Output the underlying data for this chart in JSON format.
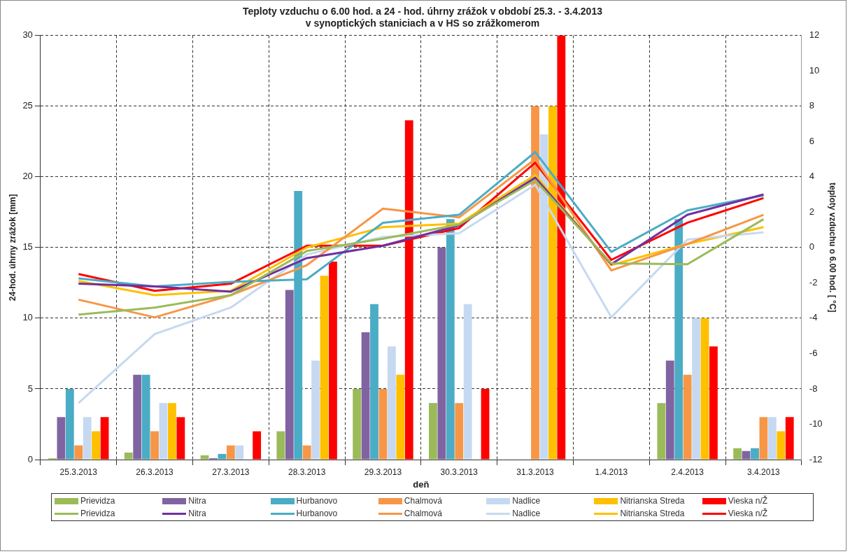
{
  "chart_data": {
    "type": "bar",
    "title": "Teploty vzduchu o 6.00 hod. a 24 - hod. úhrny zrážok v období 25.3. - 3.4.2013\nv synoptických staniciach a v HS so zrážkomerom",
    "xlabel": "deň",
    "ylabel": "24-hod. úhrny zrážok [mm]",
    "y2label": "teploty vzduchu o 6.00 hod. [ °C]",
    "categories": [
      "25.3.2013",
      "26.3.2013",
      "27.3.2013",
      "28.3.2013",
      "29.3.2013",
      "30.3.2013",
      "31.3.2013",
      "1.4.2013",
      "2.4.2013",
      "3.4.2013"
    ],
    "ylim": [
      0,
      30
    ],
    "yticks": [
      0,
      5,
      10,
      15,
      20,
      25,
      30
    ],
    "y2lim": [
      -12,
      12
    ],
    "y2ticks": [
      -12,
      -10,
      -8,
      -6,
      -4,
      -2,
      0,
      2,
      4,
      6,
      8,
      10,
      12
    ],
    "grid": true,
    "legend": "bottom",
    "series": [
      {
        "name": "Prievidza",
        "color": "#9bbb59",
        "values": [
          0.1,
          0.5,
          0.3,
          2,
          5,
          4,
          0,
          0,
          4,
          0.8
        ]
      },
      {
        "name": "Nitra",
        "color": "#8064a2",
        "values": [
          3,
          6,
          0.1,
          12,
          9,
          15,
          0,
          0,
          7,
          0.6
        ]
      },
      {
        "name": "Hurbanovo",
        "color": "#4bacc6",
        "values": [
          5,
          6,
          0.4,
          19,
          11,
          17,
          0,
          0,
          17,
          0.8
        ]
      },
      {
        "name": "Chalmová",
        "color": "#f79646",
        "values": [
          1,
          2,
          1,
          1,
          5,
          4,
          25,
          0,
          6,
          3
        ]
      },
      {
        "name": "Nadlice",
        "color": "#c6d9f1",
        "values": [
          3,
          4,
          1,
          7,
          8,
          11,
          23,
          0,
          10,
          3
        ]
      },
      {
        "name": "Nitrianska Streda",
        "color": "#ffc000",
        "values": [
          2,
          4,
          0,
          13,
          6,
          0,
          25,
          0,
          10,
          2
        ]
      },
      {
        "name": "Vieska n/Ž",
        "color": "#ff0000",
        "values": [
          3,
          3,
          2,
          14,
          24,
          5,
          30,
          0,
          8,
          3
        ]
      },
      {
        "name": "Prievidza",
        "type": "line",
        "axis": "y2",
        "color": "#9bbb59",
        "values": [
          -3.8,
          -3.4,
          -2.7,
          -0.2,
          0.5,
          1.3,
          3.8,
          -0.9,
          -0.95,
          1.6
        ]
      },
      {
        "name": "Nitra",
        "type": "line",
        "axis": "y2",
        "color": "#7030a0",
        "values": [
          -2.05,
          -2.2,
          -2.5,
          -0.6,
          0.1,
          1.25,
          3.95,
          -0.95,
          1.85,
          3.0
        ]
      },
      {
        "name": "Hurbanovo",
        "type": "line",
        "axis": "y2",
        "color": "#4bacc6",
        "values": [
          -1.75,
          -2.2,
          -1.95,
          -1.8,
          1.4,
          1.85,
          5.4,
          -0.25,
          2.1,
          2.95
        ]
      },
      {
        "name": "Chalmová",
        "type": "line",
        "axis": "y2",
        "color": "#f79646",
        "values": [
          -2.95,
          -3.95,
          -2.7,
          -1.0,
          2.2,
          1.7,
          5.0,
          -1.3,
          0.2,
          1.85
        ]
      },
      {
        "name": "Nadlice",
        "type": "line",
        "axis": "y2",
        "color": "#c6d9f1",
        "values": [
          -8.8,
          -4.9,
          -3.4,
          -0.4,
          0.6,
          0.8,
          3.55,
          -3.95,
          0.45,
          0.85
        ]
      },
      {
        "name": "Nitrianska Streda",
        "type": "line",
        "axis": "y2",
        "color": "#ffc000",
        "values": [
          -1.9,
          -2.7,
          -2.45,
          0.0,
          1.15,
          1.35,
          4.1,
          -1.0,
          0.2,
          1.15
        ]
      },
      {
        "name": "Vieska n/Ž",
        "type": "line",
        "axis": "y2",
        "color": "#ff0000",
        "values": [
          -1.5,
          -2.45,
          -2.05,
          0.1,
          0.1,
          1.1,
          4.8,
          -0.7,
          1.4,
          2.8
        ]
      }
    ]
  }
}
